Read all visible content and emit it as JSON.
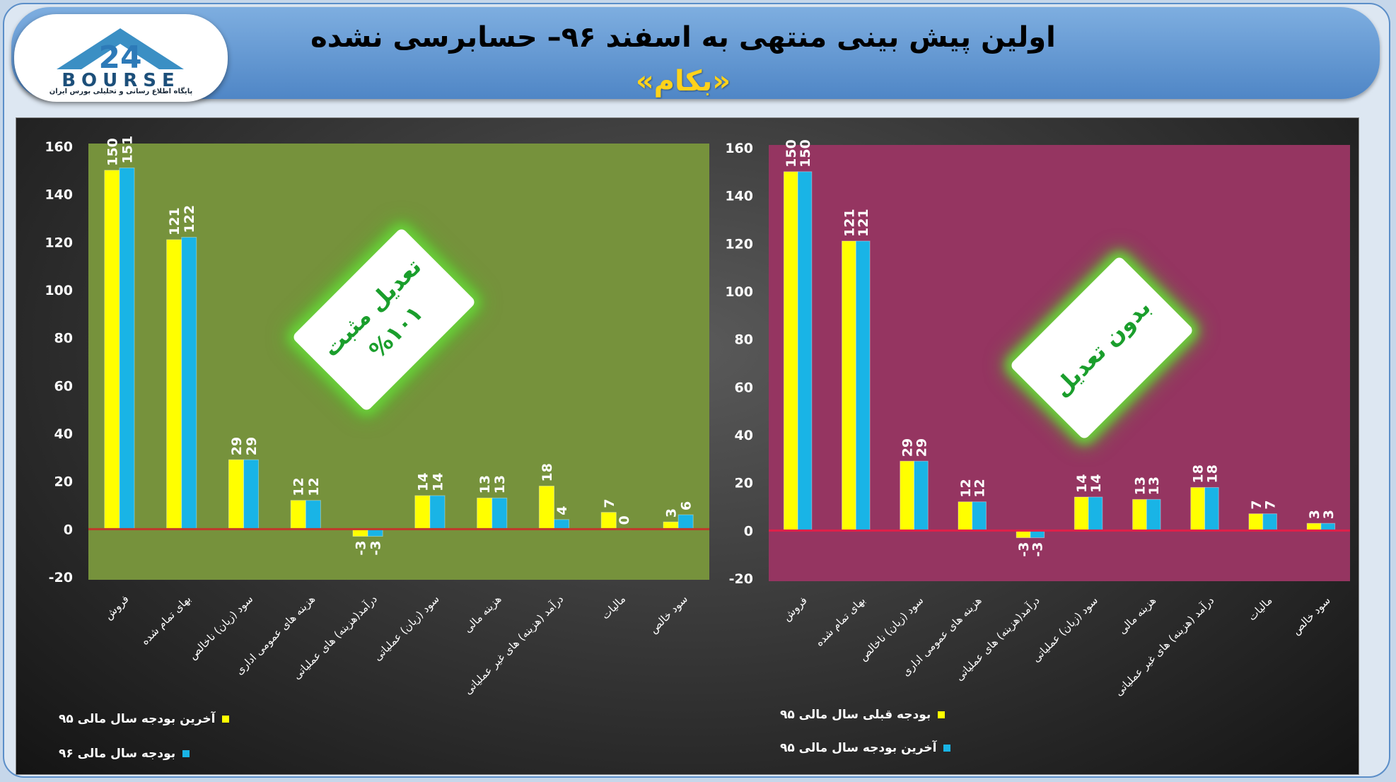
{
  "header": {
    "title": "اولین پیش بینی منتهی به اسفند ۹۶– حسابرسی نشده",
    "subtitle": "«بکام»",
    "logo_text": "BOURSE",
    "logo_number": "24",
    "logo_subtext": "پایگاه اطلاع رسانی و تحلیلی بورس ایران"
  },
  "badges": {
    "left": {
      "line1": "تعدیل مثبت",
      "line2": "%۱۰۱"
    },
    "right": {
      "line1": "بدون تعدیل"
    }
  },
  "chart_data": [
    {
      "type": "bar",
      "background": "#76923c",
      "categories": [
        "فروش",
        "بهای تمام شده",
        "سود (زیان) ناخالص",
        "هزینه های عمومی اداری",
        "درآمد(هزینه) های عملیاتی",
        "سود (زیان) عملیاتی",
        "هزینه مالی",
        "درآمد (هزینه) های غیر عملیاتی",
        "مالیات",
        "سود خالص"
      ],
      "series": [
        {
          "name": "آخرین بودجه سال مالی ۹۵",
          "color": "#ffff00",
          "values": [
            150,
            121,
            29,
            12,
            -3,
            14,
            13,
            18,
            7,
            3
          ]
        },
        {
          "name": "بودجه سال مالی ۹۶",
          "color": "#19b4e6",
          "values": [
            151,
            122,
            29,
            12,
            -3,
            14,
            13,
            4,
            0,
            6
          ]
        }
      ],
      "ylim": [
        -20,
        160
      ],
      "yticks": [
        -20,
        0,
        20,
        40,
        60,
        80,
        100,
        120,
        140,
        160
      ],
      "zero_line_color": "#c0392b",
      "legend": "bottom-left"
    },
    {
      "type": "bar",
      "background": "#953561",
      "categories": [
        "فروش",
        "بهای تمام شده",
        "سود (زیان) ناخالص",
        "هزینه های عمومی اداری",
        "درآمد(هزینه) های عملیاتی",
        "سود (زیان) عملیاتی",
        "هزینه مالی",
        "درآمد (هزینه) های غیر عملیاتی",
        "مالیات",
        "سود خالص"
      ],
      "series": [
        {
          "name": "بودجه قبلی سال مالی ۹۵",
          "color": "#ffff00",
          "values": [
            150,
            121,
            29,
            12,
            -3,
            14,
            13,
            18,
            7,
            3
          ]
        },
        {
          "name": "آخرین بودجه سال مالی ۹۵",
          "color": "#19b4e6",
          "values": [
            150,
            121,
            29,
            12,
            -3,
            14,
            13,
            18,
            7,
            3
          ]
        }
      ],
      "ylim": [
        -20,
        160
      ],
      "yticks": [
        -20,
        0,
        20,
        40,
        60,
        80,
        100,
        120,
        140,
        160
      ],
      "zero_line_color": "#e0204a",
      "legend": "bottom-left"
    }
  ]
}
